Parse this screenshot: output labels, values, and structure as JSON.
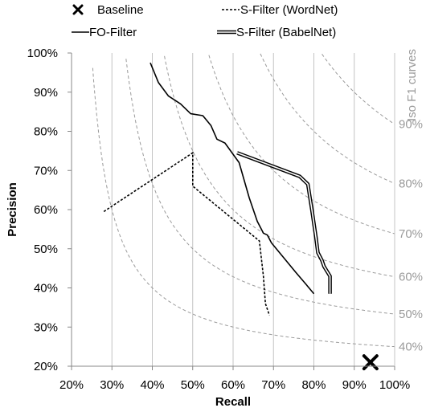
{
  "chart_data": {
    "type": "line",
    "xlabel": "Recall",
    "ylabel": "Precision",
    "xlim": [
      20,
      100
    ],
    "ylim": [
      20,
      100
    ],
    "x_ticks": [
      "20%",
      "30%",
      "40%",
      "50%",
      "60%",
      "70%",
      "80%",
      "90%",
      "100%"
    ],
    "y_ticks": [
      "20%",
      "30%",
      "40%",
      "50%",
      "60%",
      "70%",
      "80%",
      "90%",
      "100%"
    ],
    "grid": "vertical",
    "legend_position": "top",
    "iso_f1": {
      "title": "Iso F1 curves",
      "levels": [
        0.4,
        0.5,
        0.6,
        0.7,
        0.8,
        0.9
      ],
      "labels": [
        "40%",
        "50%",
        "60%",
        "70%",
        "80%",
        "90%"
      ],
      "color": "#9a9a9a"
    },
    "series": [
      {
        "name": "Baseline",
        "style": "x-marker",
        "color": "#000000",
        "points": [
          [
            94,
            21
          ]
        ]
      },
      {
        "name": "S-Filter (WordNet)",
        "style": "dashed",
        "color": "#000000",
        "points": [
          [
            28,
            59.5
          ],
          [
            50,
            74.5
          ],
          [
            50,
            66
          ],
          [
            66.5,
            52
          ],
          [
            67.5,
            43
          ],
          [
            68,
            36
          ],
          [
            69,
            33
          ]
        ]
      },
      {
        "name": "FO-Filter",
        "style": "solid",
        "color": "#000000",
        "points": [
          [
            39.5,
            97.5
          ],
          [
            41.5,
            92.5
          ],
          [
            44,
            89
          ],
          [
            47,
            87
          ],
          [
            49.5,
            84.5
          ],
          [
            52.5,
            84
          ],
          [
            54.5,
            81.5
          ],
          [
            56,
            78
          ],
          [
            58,
            77
          ],
          [
            61.5,
            72
          ],
          [
            64,
            63
          ],
          [
            66,
            57
          ],
          [
            67.5,
            54
          ],
          [
            68.5,
            53.5
          ],
          [
            69.5,
            51.5
          ],
          [
            71.5,
            49
          ],
          [
            75.5,
            44
          ],
          [
            78,
            41
          ],
          [
            80,
            38.5
          ]
        ]
      },
      {
        "name": "S-Filter (BabelNet)",
        "style": "double",
        "color": "#000000",
        "points": [
          [
            61,
            74.5
          ],
          [
            76.5,
            68.5
          ],
          [
            78.5,
            66.5
          ],
          [
            79.5,
            60
          ],
          [
            80.5,
            53
          ],
          [
            81,
            49
          ],
          [
            82,
            47
          ],
          [
            82.5,
            45.5
          ],
          [
            84,
            43
          ],
          [
            84,
            38.5
          ]
        ]
      }
    ]
  }
}
